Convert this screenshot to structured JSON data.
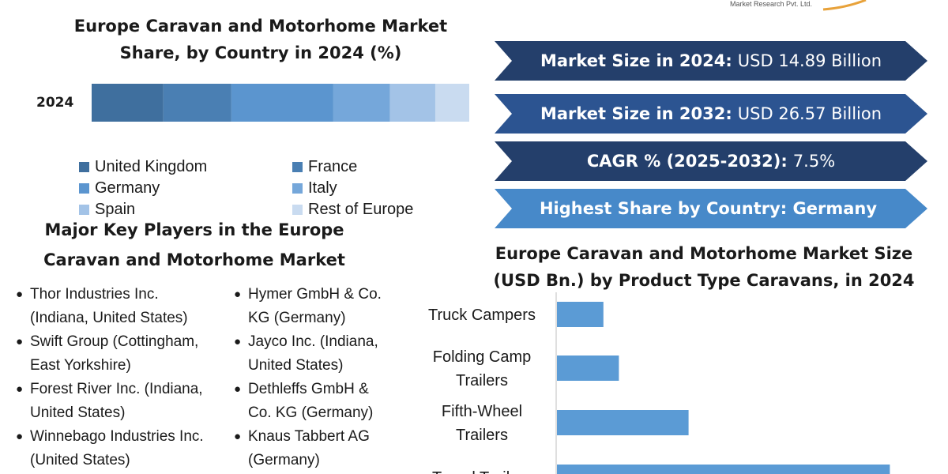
{
  "logo": {
    "company_text": "Market Research Pvt. Ltd."
  },
  "share_chart": {
    "title": "Europe Caravan and Motorhome Market Share, by Country in 2024 (%)",
    "row_label": "2024"
  },
  "banners": [
    {
      "label": "Market Size in 2024:",
      "value": "USD 14.89 Billion",
      "color": "#243f6b"
    },
    {
      "label": "Market Size in 2032:",
      "value": "USD 26.57 Billion",
      "color": "#2c5491"
    },
    {
      "label": "CAGR % (2025-2032):",
      "value": "7.5%",
      "color": "#243f6b"
    },
    {
      "label": "Highest Share by Country: Germany",
      "value": "",
      "color": "#4789c9"
    }
  ],
  "key_players": {
    "title": "Major Key Players in the Europe Caravan and Motorhome Market",
    "col1": [
      "Thor Industries Inc.\n(Indiana, United States)",
      "Swift Group (Cottingham,\nEast Yorkshire)",
      "Forest River Inc. (Indiana,\nUnited States)",
      "Winnebago Industries Inc.\n(United States)"
    ],
    "col2": [
      "Hymer GmbH & Co.\nKG (Germany)",
      "Jayco Inc. (Indiana,\nUnited States)",
      "Dethleffs GmbH &\nCo. KG (Germany)",
      "Knaus Tabbert AG\n(Germany)"
    ]
  },
  "product_chart": {
    "title": "Europe Caravan and Motorhome Market Size (USD Bn.) by Product Type Caravans, in 2024"
  },
  "chart_data": [
    {
      "type": "bar",
      "orientation": "horizontal-stacked",
      "title": "Europe Caravan and Motorhome Market Share, by Country in 2024 (%)",
      "categories": [
        "2024"
      ],
      "series": [
        {
          "name": "United Kingdom",
          "values": [
            19
          ],
          "color": "#3f6f9e"
        },
        {
          "name": "France",
          "values": [
            18
          ],
          "color": "#4a7fb3"
        },
        {
          "name": "Germany",
          "values": [
            27
          ],
          "color": "#5b95cf"
        },
        {
          "name": "Italy",
          "values": [
            15
          ],
          "color": "#75a7da"
        },
        {
          "name": "Spain",
          "values": [
            12
          ],
          "color": "#a3c3e7"
        },
        {
          "name": "Rest of Europe",
          "values": [
            9
          ],
          "color": "#c9dbf0"
        }
      ],
      "xlim": [
        0,
        100
      ],
      "legend": "bottom",
      "grid": false
    },
    {
      "type": "bar",
      "orientation": "horizontal",
      "title": "Europe Caravan and Motorhome Market Size (USD Bn.) by Product Type Caravans, in 2024",
      "categories": [
        "Truck Campers",
        "Folding Camp\nTrailers",
        "Fifth-Wheel\nTrailers",
        "Travel Trailers"
      ],
      "values": [
        0.6,
        0.8,
        1.7,
        4.3
      ],
      "color": "#5b9bd5",
      "xlim": [
        0,
        5
      ],
      "grid": false
    }
  ]
}
